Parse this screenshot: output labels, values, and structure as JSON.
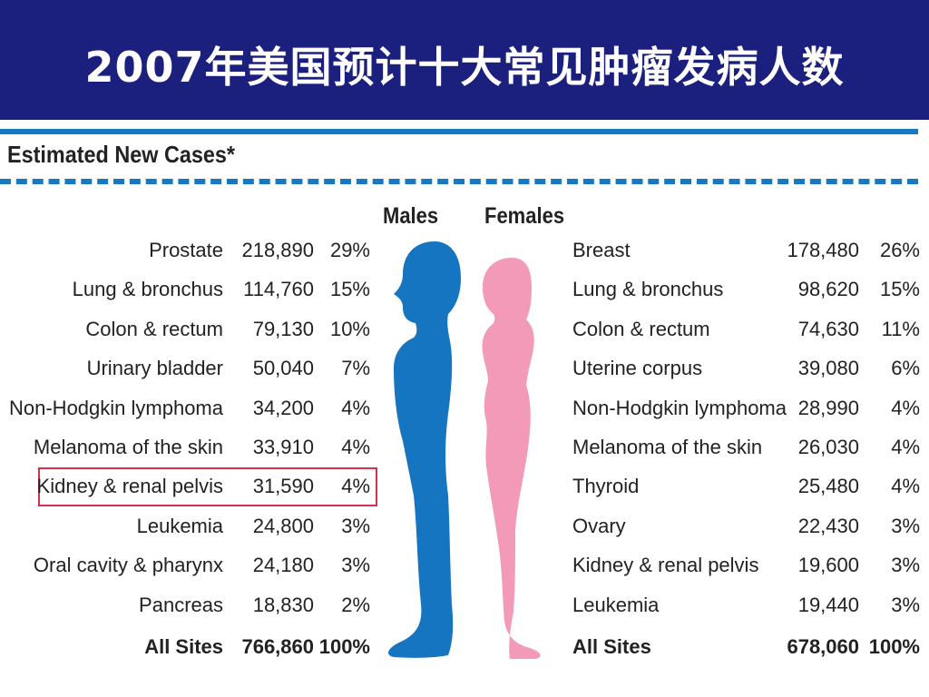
{
  "title": "2007年美国预计十大常见肿瘤发病人数",
  "subtitle": "Estimated New Cases*",
  "columns": {
    "males": "Males",
    "females": "Females"
  },
  "males": [
    {
      "site": "Prostate",
      "cases": "218,890",
      "pct": "29%"
    },
    {
      "site": "Lung & bronchus",
      "cases": "114,760",
      "pct": "15%"
    },
    {
      "site": "Colon & rectum",
      "cases": "79,130",
      "pct": "10%"
    },
    {
      "site": "Urinary bladder",
      "cases": "50,040",
      "pct": "7%"
    },
    {
      "site": "Non-Hodgkin lymphoma",
      "cases": "34,200",
      "pct": "4%"
    },
    {
      "site": "Melanoma of the skin",
      "cases": "33,910",
      "pct": "4%"
    },
    {
      "site": "Kidney & renal pelvis",
      "cases": "31,590",
      "pct": "4%"
    },
    {
      "site": "Leukemia",
      "cases": "24,800",
      "pct": "3%"
    },
    {
      "site": "Oral cavity & pharynx",
      "cases": "24,180",
      "pct": "3%"
    },
    {
      "site": "Pancreas",
      "cases": "18,830",
      "pct": "2%"
    },
    {
      "site": "All Sites",
      "cases": "766,860",
      "pct": "100%"
    }
  ],
  "females": [
    {
      "site": "Breast",
      "cases": "178,480",
      "pct": "26%"
    },
    {
      "site": "Lung & bronchus",
      "cases": "98,620",
      "pct": "15%"
    },
    {
      "site": "Colon & rectum",
      "cases": "74,630",
      "pct": "11%"
    },
    {
      "site": "Uterine corpus",
      "cases": "39,080",
      "pct": "6%"
    },
    {
      "site": "Non-Hodgkin lymphoma",
      "cases": "28,990",
      "pct": "4%"
    },
    {
      "site": "Melanoma of the skin",
      "cases": "26,030",
      "pct": "4%"
    },
    {
      "site": "Thyroid",
      "cases": "25,480",
      "pct": "4%"
    },
    {
      "site": "Ovary",
      "cases": "22,430",
      "pct": "3%"
    },
    {
      "site": "Kidney & renal pelvis",
      "cases": "19,600",
      "pct": "3%"
    },
    {
      "site": "Leukemia",
      "cases": "19,440",
      "pct": "3%"
    },
    {
      "site": "All Sites",
      "cases": "678,060",
      "pct": "100%"
    }
  ],
  "colors": {
    "header": "#1b1f7e",
    "accent": "#1779c2",
    "male": "#1675c0",
    "female": "#f29ab8",
    "highlight": "#d3324a"
  }
}
